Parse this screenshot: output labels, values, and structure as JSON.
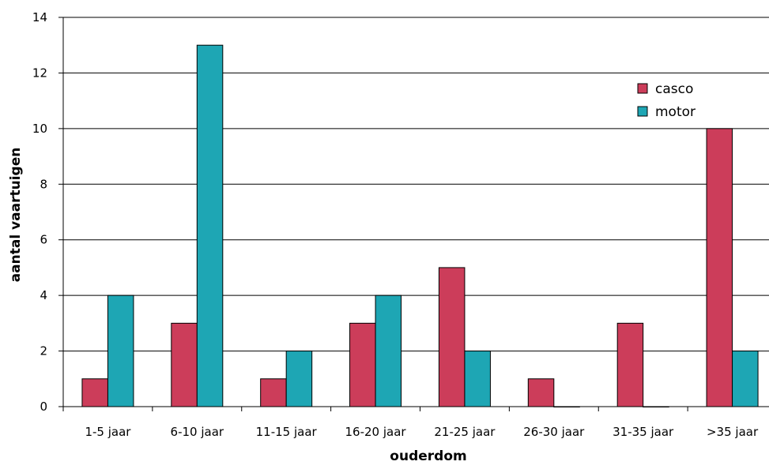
{
  "chart_data": {
    "type": "bar",
    "title": "",
    "xlabel": "ouderdom",
    "ylabel": "aantal vaartuigen",
    "categories": [
      "1-5 jaar",
      "6-10 jaar",
      "11-15 jaar",
      "16-20 jaar",
      "21-25 jaar",
      "26-30 jaar",
      "31-35 jaar",
      ">35 jaar"
    ],
    "series": [
      {
        "name": "casco",
        "color": "#cc3d5a",
        "values": [
          1,
          3,
          1,
          3,
          5,
          1,
          3,
          10
        ]
      },
      {
        "name": "motor",
        "color": "#1ea6b4",
        "values": [
          4,
          13,
          2,
          4,
          2,
          0,
          0,
          2
        ]
      }
    ],
    "ylim": [
      0,
      14
    ],
    "yticks": [
      0,
      2,
      4,
      6,
      8,
      10,
      12,
      14
    ],
    "grid": true,
    "legend_position": "top-right"
  }
}
